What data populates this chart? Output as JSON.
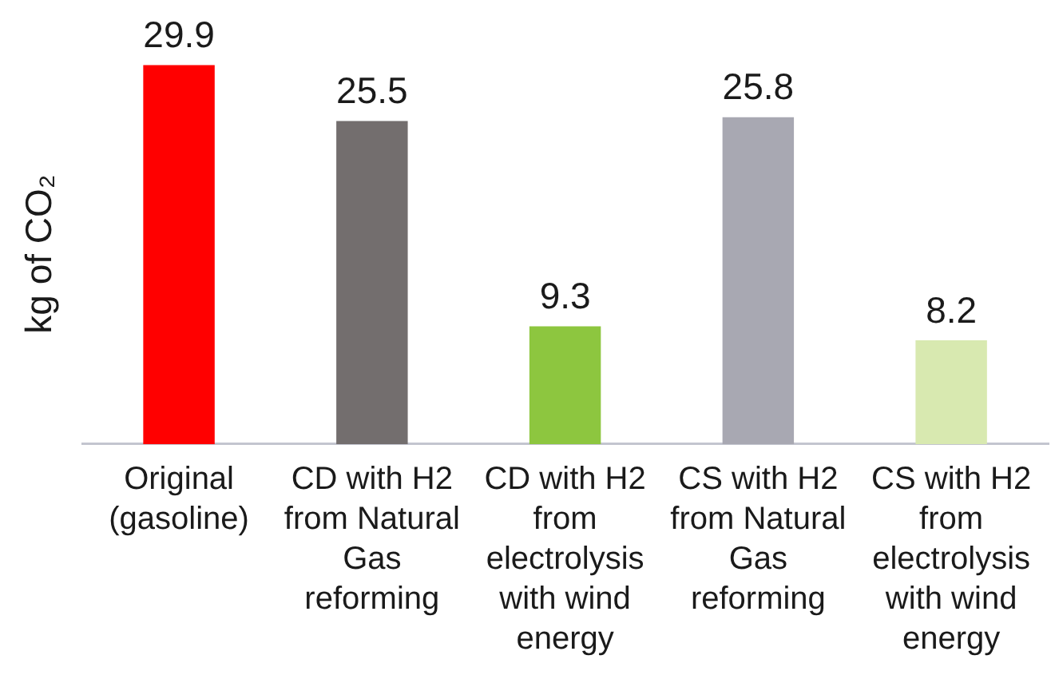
{
  "chart_data": {
    "type": "bar",
    "ylabel": "kg of CO₂",
    "categories": [
      "Original (gasoline)",
      "CD with H2 from Natural Gas reforming",
      "CD with H2 from electrolysis with wind energy",
      "CS with H2 from Natural Gas reforming",
      "CS with H2 from electrolysis with wind energy"
    ],
    "values": [
      29.9,
      25.5,
      9.3,
      25.8,
      8.2
    ],
    "colors": [
      "#ff0000",
      "#736e6e",
      "#8dc63f",
      "#a8a8b2",
      "#d8e9b0"
    ],
    "data_labels": true,
    "tick_labels": "x"
  }
}
